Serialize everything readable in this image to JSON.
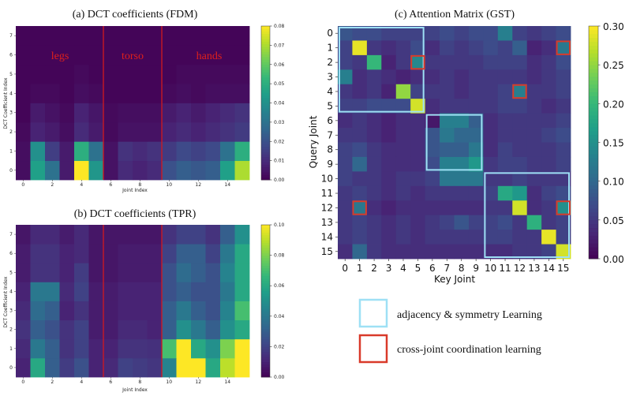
{
  "colors": {
    "viridis": [
      "#440154",
      "#482777",
      "#3e4989",
      "#31688e",
      "#26828e",
      "#1f9e89",
      "#35b779",
      "#6ece58",
      "#b5de2b",
      "#fde725"
    ],
    "separator": "#d2191e",
    "adjacency_box": "#9ee0f5",
    "coordination_box": "#d93a2a"
  },
  "chart_data": [
    {
      "id": "fdm",
      "type": "heatmap",
      "title": "(a) DCT coefficients (FDM)",
      "xlabel": "Joint Index",
      "ylabel": "DCT Coefficient Index",
      "xticks": [
        "0",
        "2",
        "4",
        "6",
        "8",
        "10",
        "12",
        "14"
      ],
      "yticks": [
        "0",
        "1",
        "2",
        "3",
        "4",
        "5",
        "6",
        "7"
      ],
      "colorbar": {
        "min": 0,
        "max": 0.08,
        "ticks": [
          "0.00",
          "0.01",
          "0.02",
          "0.03",
          "0.04",
          "0.05",
          "0.06",
          "0.07",
          "0.08"
        ]
      },
      "region_labels": [
        "legs",
        "torso",
        "hands"
      ],
      "separators_after_column": [
        5,
        9
      ],
      "values": [
        [
          0.003,
          0.045,
          0.03,
          0.006,
          0.08,
          0.042,
          0.004,
          0.01,
          0.008,
          0.01,
          0.02,
          0.024,
          0.022,
          0.024,
          0.045,
          0.07
        ],
        [
          0.003,
          0.04,
          0.015,
          0.006,
          0.05,
          0.03,
          0.004,
          0.012,
          0.01,
          0.012,
          0.014,
          0.018,
          0.016,
          0.018,
          0.03,
          0.05
        ],
        [
          0.002,
          0.008,
          0.006,
          0.003,
          0.01,
          0.006,
          0.002,
          0.004,
          0.004,
          0.004,
          0.008,
          0.01,
          0.008,
          0.01,
          0.012,
          0.014
        ],
        [
          0.001,
          0.006,
          0.004,
          0.002,
          0.008,
          0.005,
          0.002,
          0.003,
          0.003,
          0.003,
          0.006,
          0.008,
          0.006,
          0.008,
          0.01,
          0.012
        ],
        [
          0.001,
          0.002,
          0.002,
          0.001,
          0.003,
          0.002,
          0.001,
          0.001,
          0.001,
          0.001,
          0.002,
          0.003,
          0.002,
          0.003,
          0.003,
          0.003
        ],
        [
          0.001,
          0.001,
          0.001,
          0.001,
          0.002,
          0.001,
          0.001,
          0.001,
          0.001,
          0.001,
          0.001,
          0.002,
          0.002,
          0.002,
          0.002,
          0.002
        ],
        [
          0.001,
          0.001,
          0.001,
          0.001,
          0.001,
          0.001,
          0.001,
          0.001,
          0.001,
          0.001,
          0.001,
          0.001,
          0.001,
          0.001,
          0.001,
          0.001
        ],
        [
          0.001,
          0.001,
          0.001,
          0.001,
          0.001,
          0.001,
          0.001,
          0.001,
          0.001,
          0.001,
          0.001,
          0.001,
          0.001,
          0.001,
          0.001,
          0.001
        ]
      ]
    },
    {
      "id": "tpr",
      "type": "heatmap",
      "title": "(b) DCT coefficients (TPR)",
      "xlabel": "Joint Index",
      "ylabel": "DCT Coefficient Index",
      "xticks": [
        "0",
        "2",
        "4",
        "6",
        "8",
        "10",
        "12",
        "14"
      ],
      "yticks": [
        "0",
        "1",
        "2",
        "3",
        "4",
        "5",
        "6",
        "7"
      ],
      "colorbar": {
        "min": 0,
        "max": 0.1,
        "ticks": [
          "0.00",
          "0.02",
          "0.04",
          "0.06",
          "0.08",
          "0.10"
        ]
      },
      "separators_after_column": [
        5,
        9
      ],
      "values": [
        [
          0.01,
          0.06,
          0.03,
          0.018,
          0.025,
          0.01,
          0.012,
          0.02,
          0.018,
          0.016,
          0.045,
          0.1,
          0.1,
          0.06,
          0.09,
          0.1
        ],
        [
          0.012,
          0.04,
          0.03,
          0.015,
          0.02,
          0.01,
          0.01,
          0.015,
          0.015,
          0.014,
          0.07,
          0.1,
          0.06,
          0.05,
          0.08,
          0.1
        ],
        [
          0.015,
          0.03,
          0.025,
          0.015,
          0.02,
          0.008,
          0.008,
          0.012,
          0.012,
          0.01,
          0.03,
          0.05,
          0.04,
          0.03,
          0.05,
          0.06
        ],
        [
          0.012,
          0.035,
          0.03,
          0.01,
          0.015,
          0.008,
          0.008,
          0.01,
          0.01,
          0.01,
          0.03,
          0.04,
          0.03,
          0.025,
          0.045,
          0.07
        ],
        [
          0.01,
          0.04,
          0.04,
          0.012,
          0.02,
          0.008,
          0.008,
          0.01,
          0.01,
          0.01,
          0.025,
          0.03,
          0.025,
          0.025,
          0.04,
          0.06
        ],
        [
          0.008,
          0.015,
          0.015,
          0.01,
          0.018,
          0.006,
          0.006,
          0.008,
          0.008,
          0.008,
          0.025,
          0.035,
          0.03,
          0.025,
          0.045,
          0.06
        ],
        [
          0.008,
          0.015,
          0.015,
          0.01,
          0.012,
          0.006,
          0.006,
          0.008,
          0.008,
          0.008,
          0.02,
          0.03,
          0.03,
          0.02,
          0.04,
          0.06
        ],
        [
          0.006,
          0.012,
          0.012,
          0.008,
          0.012,
          0.006,
          0.006,
          0.006,
          0.006,
          0.006,
          0.015,
          0.02,
          0.02,
          0.015,
          0.03,
          0.05
        ]
      ]
    },
    {
      "id": "gst",
      "type": "heatmap",
      "title": "(c) Attention Matrix (GST)",
      "xlabel": "Key Joint",
      "ylabel": "Query Joint",
      "ticks": [
        "0",
        "1",
        "2",
        "3",
        "4",
        "5",
        "6",
        "7",
        "8",
        "9",
        "10",
        "11",
        "12",
        "13",
        "14",
        "15"
      ],
      "colorbar": {
        "min": 0,
        "max": 0.3,
        "ticks": [
          "0.00",
          "0.05",
          "0.10",
          "0.15",
          "0.20",
          "0.25",
          "0.30"
        ]
      },
      "adjacency_groups": [
        [
          0,
          5
        ],
        [
          6,
          9
        ],
        [
          10,
          15
        ]
      ],
      "coordination_cells": [
        [
          2,
          5
        ],
        [
          1,
          15
        ],
        [
          4,
          12
        ],
        [
          12,
          1
        ],
        [
          12,
          15
        ]
      ],
      "values": [
        [
          0.08,
          0.07,
          0.07,
          0.06,
          0.06,
          0.06,
          0.06,
          0.07,
          0.06,
          0.07,
          0.07,
          0.13,
          0.06,
          0.05,
          0.06,
          0.07
        ],
        [
          0.06,
          0.29,
          0.05,
          0.04,
          0.05,
          0.07,
          0.04,
          0.06,
          0.05,
          0.06,
          0.07,
          0.06,
          0.09,
          0.03,
          0.04,
          0.12
        ],
        [
          0.06,
          0.05,
          0.2,
          0.03,
          0.05,
          0.14,
          0.05,
          0.05,
          0.05,
          0.05,
          0.06,
          0.06,
          0.06,
          0.04,
          0.05,
          0.07
        ],
        [
          0.13,
          0.04,
          0.05,
          0.04,
          0.03,
          0.04,
          0.04,
          0.05,
          0.04,
          0.05,
          0.05,
          0.05,
          0.05,
          0.04,
          0.05,
          0.06
        ],
        [
          0.05,
          0.04,
          0.05,
          0.03,
          0.25,
          0.06,
          0.05,
          0.05,
          0.04,
          0.05,
          0.05,
          0.06,
          0.13,
          0.05,
          0.05,
          0.06
        ],
        [
          0.06,
          0.06,
          0.07,
          0.07,
          0.07,
          0.28,
          0.04,
          0.05,
          0.05,
          0.05,
          0.05,
          0.06,
          0.06,
          0.05,
          0.04,
          0.05
        ],
        [
          0.04,
          0.05,
          0.04,
          0.03,
          0.04,
          0.04,
          0.02,
          0.13,
          0.13,
          0.09,
          0.04,
          0.05,
          0.05,
          0.05,
          0.05,
          0.06
        ],
        [
          0.05,
          0.05,
          0.04,
          0.03,
          0.04,
          0.04,
          0.08,
          0.12,
          0.1,
          0.1,
          0.04,
          0.05,
          0.05,
          0.05,
          0.06,
          0.07
        ],
        [
          0.06,
          0.07,
          0.05,
          0.04,
          0.04,
          0.04,
          0.08,
          0.09,
          0.09,
          0.12,
          0.04,
          0.06,
          0.05,
          0.05,
          0.05,
          0.06
        ],
        [
          0.06,
          0.1,
          0.05,
          0.04,
          0.04,
          0.04,
          0.07,
          0.13,
          0.13,
          0.16,
          0.05,
          0.06,
          0.06,
          0.05,
          0.05,
          0.06
        ],
        [
          0.06,
          0.05,
          0.05,
          0.04,
          0.05,
          0.05,
          0.06,
          0.12,
          0.12,
          0.12,
          0.05,
          0.05,
          0.06,
          0.05,
          0.05,
          0.05
        ],
        [
          0.05,
          0.06,
          0.05,
          0.04,
          0.05,
          0.04,
          0.05,
          0.05,
          0.05,
          0.05,
          0.06,
          0.18,
          0.16,
          0.04,
          0.06,
          0.07
        ],
        [
          0.05,
          0.12,
          0.04,
          0.03,
          0.04,
          0.04,
          0.04,
          0.04,
          0.04,
          0.04,
          0.05,
          0.05,
          0.28,
          0.04,
          0.05,
          0.15
        ],
        [
          0.05,
          0.06,
          0.05,
          0.04,
          0.05,
          0.04,
          0.05,
          0.06,
          0.08,
          0.06,
          0.06,
          0.07,
          0.05,
          0.19,
          0.05,
          0.06
        ],
        [
          0.05,
          0.06,
          0.05,
          0.04,
          0.05,
          0.04,
          0.05,
          0.05,
          0.05,
          0.05,
          0.06,
          0.06,
          0.05,
          0.05,
          0.29,
          0.06
        ],
        [
          0.04,
          0.1,
          0.05,
          0.04,
          0.04,
          0.04,
          0.04,
          0.04,
          0.04,
          0.04,
          0.04,
          0.04,
          0.05,
          0.05,
          0.06,
          0.28
        ]
      ]
    }
  ],
  "legend": {
    "adjacency_label": "adjacency & symmetry Learning",
    "coordination_label": "cross-joint coordination learning"
  }
}
